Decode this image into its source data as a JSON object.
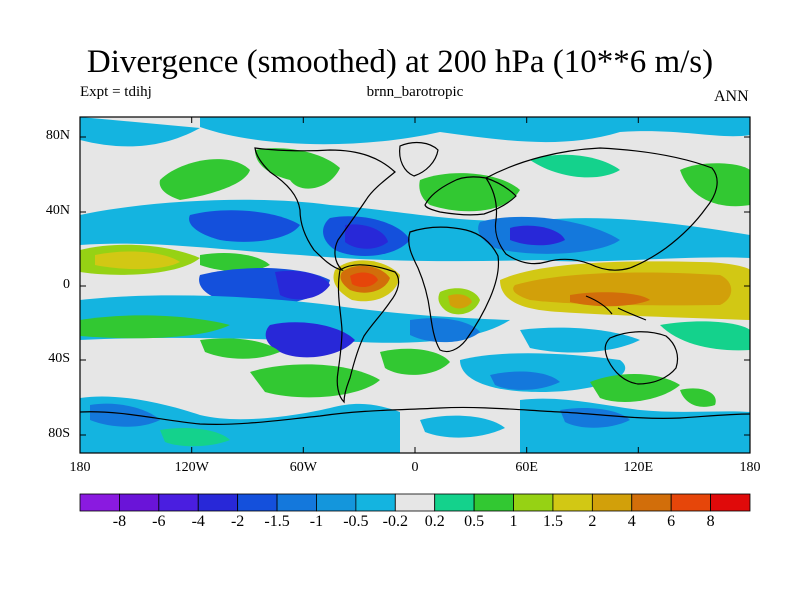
{
  "title": "Divergence (smoothed) at 200 hPa (10**6 m/s)",
  "left_subtitle": "Expt = tdihj",
  "center_subtitle": "brnn_barotropic",
  "right_subtitle": "ANN",
  "y_ticks": [
    "80N",
    "40N",
    "0",
    "40S",
    "80S"
  ],
  "x_ticks": [
    "180",
    "120W",
    "60W",
    "0",
    "60E",
    "120E",
    "180"
  ],
  "colorbar": {
    "labels": [
      "-8",
      "-6",
      "-4",
      "-2",
      "-1.5",
      "-1",
      "-0.5",
      "-0.2",
      "0.2",
      "0.5",
      "1",
      "1.5",
      "2",
      "4",
      "6",
      "8"
    ],
    "colors": [
      "#8a1ae0",
      "#6a14d8",
      "#4a1ee0",
      "#2828d8",
      "#1450dc",
      "#1478dc",
      "#1496dc",
      "#14b4e0",
      "#e6e6e6",
      "#14d28c",
      "#32c832",
      "#96d214",
      "#d2c814",
      "#d2a00a",
      "#d26e0a",
      "#e6460a",
      "#e00a0a"
    ]
  },
  "colors": {
    "land_outline": "#000000",
    "background_field": "#e6e6e6"
  }
}
